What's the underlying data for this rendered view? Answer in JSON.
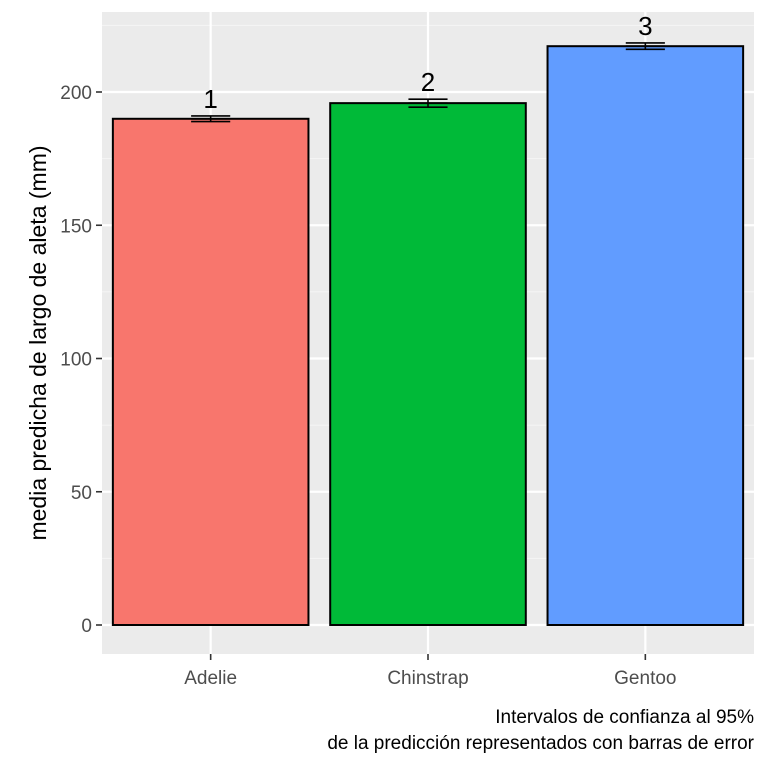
{
  "chart_data": {
    "type": "bar",
    "categories": [
      "Adelie",
      "Chinstrap",
      "Gentoo"
    ],
    "values": [
      189.95,
      195.82,
      217.19
    ],
    "error_low": [
      188.9,
      194.3,
      216.0
    ],
    "error_high": [
      191.0,
      197.3,
      218.4
    ],
    "bar_labels": [
      "1",
      "2",
      "3"
    ],
    "ylabel": "media predicha de largo de aleta (mm)",
    "xlabel": "",
    "ylim": [
      0,
      228
    ],
    "yticks": [
      0,
      50,
      100,
      150,
      200
    ],
    "grid": true,
    "legend": "none",
    "caption_lines": [
      "Intervalos de confianza al 95%",
      "de la predicción representados con barras de error"
    ]
  },
  "colors": {
    "panel_background": "#EBEBEB",
    "grid_major": "#FFFFFF",
    "grid_minor": "#F5F5F5",
    "bars": [
      "#F8766D",
      "#00BA38",
      "#619CFF"
    ],
    "bar_outline": "#000000",
    "tick_text": "#4D4D4D"
  }
}
